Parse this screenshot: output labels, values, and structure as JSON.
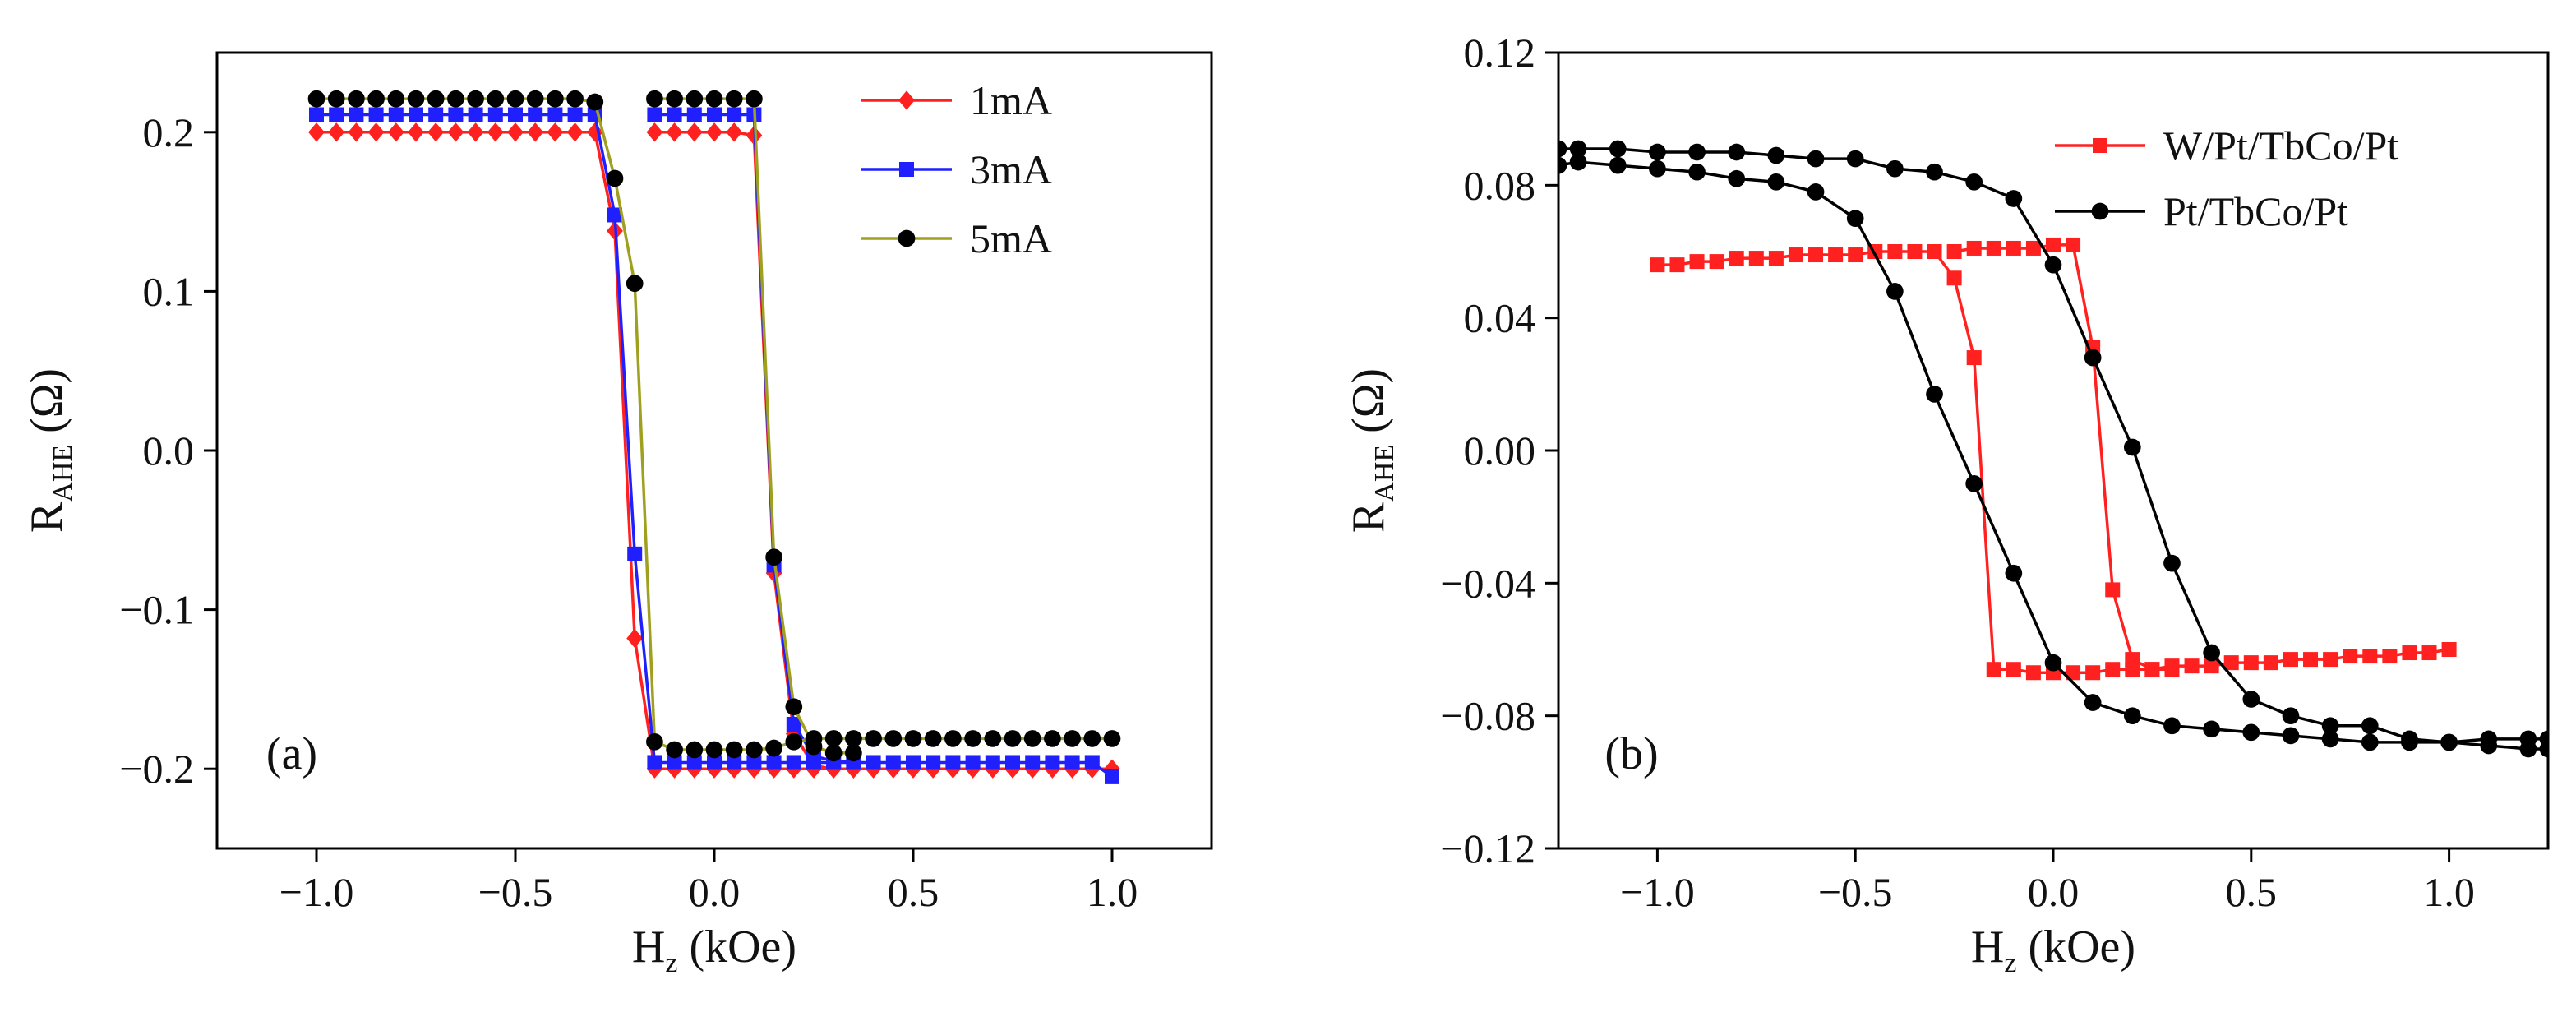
{
  "figure": {
    "background": "#ffffff"
  },
  "chart_data": [
    {
      "type": "line",
      "panel_label": "(a)",
      "xlabel": {
        "main": "H",
        "sub": "z",
        "rest": " (kOe)"
      },
      "ylabel": {
        "main": "R",
        "sub": "AHE",
        "rest": " (Ω)"
      },
      "xlim": [
        -1.25,
        1.25
      ],
      "ylim": [
        -0.25,
        0.25
      ],
      "xticks": [
        -1.0,
        -0.5,
        0.0,
        0.5,
        1.0
      ],
      "xtick_labels": [
        "−1.0",
        "−0.5",
        "0.0",
        "0.5",
        "1.0"
      ],
      "yticks": [
        -0.2,
        -0.1,
        0.0,
        0.1,
        0.2
      ],
      "ytick_labels": [
        "−0.2",
        "−0.1",
        "0.0",
        "0.1",
        "0.2"
      ],
      "legend_position": "top-right",
      "series": [
        {
          "name": "1mA",
          "color": "#ff2020",
          "marker": "diamond",
          "branches": [
            {
              "x": [
                -1.0,
                -0.95,
                -0.9,
                -0.85,
                -0.8,
                -0.75,
                -0.7,
                -0.65,
                -0.6,
                -0.55,
                -0.5,
                -0.45,
                -0.4,
                -0.35,
                -0.3,
                -0.25,
                -0.2,
                -0.15,
                -0.1,
                -0.05,
                0.0,
                0.05,
                0.1,
                0.15,
                0.2,
                0.25,
                0.3,
                0.35,
                0.4,
                0.45,
                0.5,
                0.55,
                0.6,
                0.65,
                0.7,
                0.75,
                0.8,
                0.85,
                0.9,
                0.95,
                1.0
              ],
              "y": [
                0.2,
                0.2,
                0.2,
                0.2,
                0.2,
                0.2,
                0.2,
                0.2,
                0.2,
                0.2,
                0.2,
                0.2,
                0.2,
                0.2,
                0.2,
                0.138,
                -0.118,
                -0.2,
                -0.2,
                -0.2,
                -0.2,
                -0.2,
                -0.2,
                -0.2,
                -0.2,
                -0.2,
                -0.2,
                -0.2,
                -0.2,
                -0.2,
                -0.2,
                -0.2,
                -0.2,
                -0.2,
                -0.2,
                -0.2,
                -0.2,
                -0.2,
                -0.2,
                -0.2,
                -0.2
              ]
            },
            {
              "x": [
                -0.15,
                -0.1,
                -0.05,
                0.0,
                0.05,
                0.1,
                0.15,
                0.2,
                0.25,
                0.3,
                0.35
              ],
              "y": [
                0.2,
                0.2,
                0.2,
                0.2,
                0.2,
                0.198,
                -0.077,
                -0.178,
                -0.198,
                -0.2,
                -0.2
              ]
            }
          ]
        },
        {
          "name": "3mA",
          "color": "#2020ff",
          "marker": "square",
          "branches": [
            {
              "x": [
                -1.0,
                -0.95,
                -0.9,
                -0.85,
                -0.8,
                -0.75,
                -0.7,
                -0.65,
                -0.6,
                -0.55,
                -0.5,
                -0.45,
                -0.4,
                -0.35,
                -0.3,
                -0.25,
                -0.2,
                -0.15,
                -0.1,
                -0.05,
                0.0,
                0.05,
                0.1,
                0.15,
                0.2,
                0.25,
                0.3,
                0.35,
                0.4,
                0.45,
                0.5,
                0.55,
                0.6,
                0.65,
                0.7,
                0.75,
                0.8,
                0.85,
                0.9,
                0.95,
                1.0
              ],
              "y": [
                0.211,
                0.211,
                0.211,
                0.211,
                0.211,
                0.211,
                0.211,
                0.211,
                0.211,
                0.211,
                0.211,
                0.211,
                0.211,
                0.211,
                0.211,
                0.148,
                -0.065,
                -0.196,
                -0.196,
                -0.196,
                -0.196,
                -0.196,
                -0.196,
                -0.196,
                -0.196,
                -0.196,
                -0.196,
                -0.196,
                -0.196,
                -0.196,
                -0.196,
                -0.196,
                -0.196,
                -0.196,
                -0.196,
                -0.196,
                -0.196,
                -0.196,
                -0.196,
                -0.196,
                -0.205
              ]
            },
            {
              "x": [
                -0.15,
                -0.1,
                -0.05,
                0.0,
                0.05,
                0.1,
                0.15,
                0.2,
                0.25,
                0.3,
                0.35
              ],
              "y": [
                0.211,
                0.211,
                0.211,
                0.211,
                0.211,
                0.211,
                -0.072,
                -0.172,
                -0.192,
                -0.195,
                -0.196
              ]
            }
          ]
        },
        {
          "name": "5mA",
          "color": "#a0a020",
          "marker": "circle",
          "marker_color": "#000000",
          "branches": [
            {
              "x": [
                -1.0,
                -0.95,
                -0.9,
                -0.85,
                -0.8,
                -0.75,
                -0.7,
                -0.65,
                -0.6,
                -0.55,
                -0.5,
                -0.45,
                -0.4,
                -0.35,
                -0.3,
                -0.25,
                -0.2,
                -0.15,
                -0.1,
                -0.05,
                0.0,
                0.05,
                0.1,
                0.15,
                0.2,
                0.25,
                0.3,
                0.35,
                0.4,
                0.45,
                0.5,
                0.55,
                0.6,
                0.65,
                0.7,
                0.75,
                0.8,
                0.85,
                0.9,
                0.95,
                1.0
              ],
              "y": [
                0.221,
                0.221,
                0.221,
                0.221,
                0.221,
                0.221,
                0.221,
                0.221,
                0.221,
                0.221,
                0.221,
                0.221,
                0.221,
                0.221,
                0.219,
                0.171,
                0.105,
                -0.183,
                -0.188,
                -0.188,
                -0.188,
                -0.188,
                -0.188,
                -0.187,
                -0.183,
                -0.181,
                -0.181,
                -0.181,
                -0.181,
                -0.181,
                -0.181,
                -0.181,
                -0.181,
                -0.181,
                -0.181,
                -0.181,
                -0.181,
                -0.181,
                -0.181,
                -0.181,
                -0.181
              ]
            },
            {
              "x": [
                -0.15,
                -0.1,
                -0.05,
                0.0,
                0.05,
                0.1,
                0.15,
                0.2,
                0.25,
                0.3,
                0.35
              ],
              "y": [
                0.221,
                0.221,
                0.221,
                0.221,
                0.221,
                0.221,
                -0.067,
                -0.161,
                -0.186,
                -0.19,
                -0.19
              ]
            }
          ]
        }
      ]
    },
    {
      "type": "line",
      "panel_label": "(b)",
      "xlabel": {
        "main": "H",
        "sub": "z",
        "rest": " (kOe)"
      },
      "ylabel": {
        "main": "R",
        "sub": "AHE",
        "rest": " (Ω)"
      },
      "xlim": [
        -1.25,
        1.25
      ],
      "ylim": [
        -0.12,
        0.12
      ],
      "xticks": [
        -1.0,
        -0.5,
        0.0,
        0.5,
        1.0
      ],
      "xtick_labels": [
        "−1.0",
        "−0.5",
        "0.0",
        "0.5",
        "1.0"
      ],
      "yticks": [
        -0.12,
        -0.08,
        -0.04,
        0.0,
        0.04,
        0.08,
        0.12
      ],
      "ytick_labels": [
        "−0.12",
        "−0.08",
        "−0.04",
        "0.00",
        "0.04",
        "0.08",
        "0.12"
      ],
      "legend_position": "top-right",
      "series": [
        {
          "name": "W/Pt/TbCo/Pt",
          "color": "#ff2020",
          "marker": "square",
          "branches": [
            {
              "x": [
                -1.0,
                -0.95,
                -0.9,
                -0.85,
                -0.8,
                -0.75,
                -0.7,
                -0.65,
                -0.6,
                -0.55,
                -0.5,
                -0.45,
                -0.4,
                -0.35,
                -0.3,
                -0.25,
                -0.2,
                -0.15,
                -0.1,
                -0.05,
                0.0,
                0.05,
                0.1,
                0.15,
                0.2,
                0.25,
                0.3,
                0.35,
                0.4,
                0.45,
                0.5,
                0.55,
                0.6,
                0.65,
                0.7,
                0.75,
                0.8,
                0.85,
                0.9,
                0.95,
                1.0
              ],
              "y": [
                0.056,
                0.056,
                0.057,
                0.057,
                0.058,
                0.058,
                0.058,
                0.059,
                0.059,
                0.059,
                0.059,
                0.06,
                0.06,
                0.06,
                0.06,
                0.052,
                0.028,
                -0.066,
                -0.066,
                -0.067,
                -0.067,
                -0.067,
                -0.067,
                -0.066,
                -0.066,
                -0.066,
                -0.065,
                -0.065,
                -0.065,
                -0.064,
                -0.064,
                -0.064,
                -0.063,
                -0.063,
                -0.063,
                -0.062,
                -0.062,
                -0.062,
                -0.061,
                -0.061,
                -0.06
              ]
            },
            {
              "x": [
                -0.25,
                -0.2,
                -0.15,
                -0.1,
                -0.05,
                0.0,
                0.05,
                0.1,
                0.15,
                0.2,
                0.25,
                0.3
              ],
              "y": [
                0.06,
                0.061,
                0.061,
                0.061,
                0.061,
                0.062,
                0.062,
                0.031,
                -0.042,
                -0.063,
                -0.066,
                -0.066
              ]
            }
          ]
        },
        {
          "name": "Pt/TbCo/Pt",
          "color": "#000000",
          "marker": "circle",
          "branches": [
            {
              "x": [
                -1.25,
                -1.2,
                -1.1,
                -1.0,
                -0.9,
                -0.8,
                -0.7,
                -0.6,
                -0.5,
                -0.4,
                -0.3,
                -0.2,
                -0.1,
                0.0,
                0.1,
                0.2,
                0.3,
                0.4,
                0.5,
                0.6,
                0.7,
                0.8,
                0.9,
                1.0,
                1.1,
                1.2,
                1.25
              ],
              "y": [
                0.086,
                0.087,
                0.086,
                0.085,
                0.084,
                0.082,
                0.081,
                0.078,
                0.07,
                0.048,
                0.017,
                -0.01,
                -0.037,
                -0.064,
                -0.076,
                -0.08,
                -0.083,
                -0.084,
                -0.085,
                -0.086,
                -0.087,
                -0.088,
                -0.088,
                -0.088,
                -0.087,
                -0.087,
                -0.087
              ]
            },
            {
              "x": [
                -1.25,
                -1.2,
                -1.1,
                -1.0,
                -0.9,
                -0.8,
                -0.7,
                -0.6,
                -0.5,
                -0.4,
                -0.3,
                -0.2,
                -0.1,
                0.0,
                0.1,
                0.2,
                0.3,
                0.4,
                0.5,
                0.6,
                0.7,
                0.8,
                0.9,
                1.0,
                1.1,
                1.2,
                1.25
              ],
              "y": [
                0.091,
                0.091,
                0.091,
                0.09,
                0.09,
                0.09,
                0.089,
                0.088,
                0.088,
                0.085,
                0.084,
                0.081,
                0.076,
                0.056,
                0.028,
                0.001,
                -0.034,
                -0.061,
                -0.075,
                -0.08,
                -0.083,
                -0.083,
                -0.087,
                -0.088,
                -0.089,
                -0.09,
                -0.09
              ]
            }
          ]
        }
      ]
    }
  ]
}
